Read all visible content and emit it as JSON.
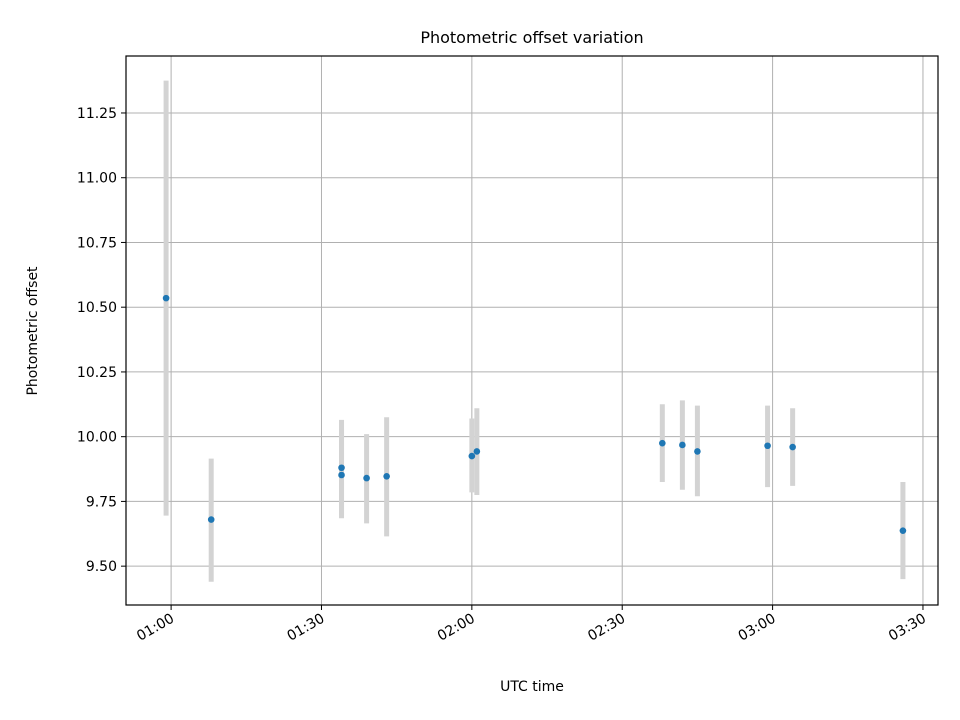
{
  "chart_data": {
    "type": "scatter",
    "title": "Photometric offset variation",
    "xlabel": "UTC time",
    "ylabel": "Photometric offset",
    "x_unit": "HH:MM UTC",
    "xlim": [
      "00:51",
      "03:33"
    ],
    "ylim": [
      9.35,
      11.47
    ],
    "grid": true,
    "x_ticks": [
      "01:00",
      "01:30",
      "02:00",
      "02:30",
      "03:00",
      "03:30"
    ],
    "y_ticks": [
      "9.50",
      "9.75",
      "10.00",
      "10.25",
      "10.50",
      "10.75",
      "11.00",
      "11.25"
    ],
    "colors": {
      "marker": "#1f77b4",
      "errorbar": "#d3d3d3",
      "grid": "#b0b0b0"
    },
    "points": [
      {
        "x": "00:59",
        "y": 10.535,
        "ylow": 9.695,
        "yhigh": 11.375
      },
      {
        "x": "01:08",
        "y": 9.68,
        "ylow": 9.44,
        "yhigh": 9.915
      },
      {
        "x": "01:34",
        "y": 9.852,
        "ylow": 9.685,
        "yhigh": 10.03
      },
      {
        "x": "01:34",
        "y": 9.88,
        "ylow": 9.695,
        "yhigh": 10.065
      },
      {
        "x": "01:39",
        "y": 9.84,
        "ylow": 9.665,
        "yhigh": 10.01
      },
      {
        "x": "01:43",
        "y": 9.847,
        "ylow": 9.615,
        "yhigh": 10.075
      },
      {
        "x": "02:00",
        "y": 9.925,
        "ylow": 9.785,
        "yhigh": 10.07
      },
      {
        "x": "02:01",
        "y": 9.943,
        "ylow": 9.775,
        "yhigh": 10.11
      },
      {
        "x": "02:38",
        "y": 9.975,
        "ylow": 9.825,
        "yhigh": 10.125
      },
      {
        "x": "02:42",
        "y": 9.968,
        "ylow": 9.795,
        "yhigh": 10.14
      },
      {
        "x": "02:45",
        "y": 9.943,
        "ylow": 9.77,
        "yhigh": 10.12
      },
      {
        "x": "02:59",
        "y": 9.965,
        "ylow": 9.805,
        "yhigh": 10.12
      },
      {
        "x": "03:04",
        "y": 9.96,
        "ylow": 9.81,
        "yhigh": 10.11
      },
      {
        "x": "03:26",
        "y": 9.637,
        "ylow": 9.45,
        "yhigh": 9.825
      }
    ]
  }
}
